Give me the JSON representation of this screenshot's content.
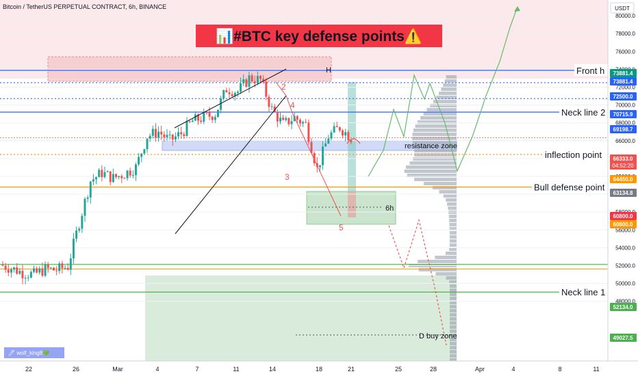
{
  "header": {
    "symbol_title": "Bitcoin / TetherUS PERPETUAL CONTRACT, 6h, BINANCE",
    "currency_button": "USDT"
  },
  "banner": {
    "title": "📊#BTC key defense points⚠️"
  },
  "author_tag": "🖊 wolf_king8💚",
  "colors": {
    "background": "#ffffff",
    "up": "#26a69a",
    "down": "#ef5350",
    "blue": "#2962ff",
    "orange": "#ff9800",
    "green": "#4caf50",
    "banner_bg": "#f23645",
    "red_zone": "#f8d7da",
    "green_zone": "#b9dbbd",
    "profile": "#9aa0ad"
  },
  "chart_data": {
    "type": "candlestick",
    "title": "Bitcoin / TetherUS PERPETUAL CONTRACT, 6h, BINANCE",
    "interval": "6h",
    "y_axis": {
      "ticks": [
        48000,
        50000,
        52000,
        54000,
        56000,
        58000,
        60000,
        62000,
        64000,
        66000,
        68000,
        70000,
        72000,
        74000,
        76000,
        78000,
        80000
      ],
      "ylim": [
        47000,
        82000
      ],
      "unit": "USDT"
    },
    "x_axis": {
      "tick_labels": [
        "22",
        "26",
        "Mar",
        "4",
        "7",
        "11",
        "14",
        "18",
        "21",
        "25",
        "28",
        "Apr",
        "4",
        "8",
        "11"
      ]
    },
    "price_path": [
      [
        "2024-02-20",
        52100
      ],
      [
        "2024-02-21",
        51700
      ],
      [
        "2024-02-22",
        51200
      ],
      [
        "2024-02-23",
        51000
      ],
      [
        "2024-02-24",
        51600
      ],
      [
        "2024-02-25",
        51500
      ],
      [
        "2024-02-26",
        51900
      ],
      [
        "2024-02-27",
        56800
      ],
      [
        "2024-02-28",
        61500
      ],
      [
        "2024-02-29",
        62400
      ],
      [
        "2024-03-01",
        61800
      ],
      [
        "2024-03-02",
        62300
      ],
      [
        "2024-03-03",
        63000
      ],
      [
        "2024-03-04",
        66500
      ],
      [
        "2024-03-05",
        67000
      ],
      [
        "2024-03-06",
        66000
      ],
      [
        "2024-03-07",
        66800
      ],
      [
        "2024-03-08",
        68200
      ],
      [
        "2024-03-09",
        68600
      ],
      [
        "2024-03-10",
        69000
      ],
      [
        "2024-03-11",
        71800
      ],
      [
        "2024-03-12",
        71500
      ],
      [
        "2024-03-13",
        73000
      ],
      [
        "2024-03-14",
        72800
      ],
      [
        "2024-03-15",
        69500
      ],
      [
        "2024-03-16",
        67800
      ],
      [
        "2024-03-17",
        68600
      ],
      [
        "2024-03-18",
        67800
      ],
      [
        "2024-03-19",
        62800
      ],
      [
        "2024-03-20",
        66500
      ],
      [
        "2024-03-21",
        67500
      ],
      [
        "2024-03-22",
        66333
      ]
    ],
    "key_levels": [
      {
        "name": "Front h",
        "price": 73881.4,
        "color": "#2962ff",
        "style": "solid"
      },
      {
        "price": 72500.0,
        "color": "#2962ff",
        "style": "dotted"
      },
      {
        "price": 70715.9,
        "color": "#2962ff",
        "style": "dotted"
      },
      {
        "name": "Neck line 2",
        "price": 69198.7,
        "color": "#2962ff",
        "style": "solid"
      },
      {
        "name": "inflection point",
        "price": 64450.0,
        "color": "#ff9800",
        "style": "dotted"
      },
      {
        "name": "Bull defense point",
        "price": 60800.0,
        "color": "#ff9800",
        "style": "solid"
      },
      {
        "price": 52134.0,
        "color": "#4caf50",
        "style": "solid"
      },
      {
        "name": "Neck line 1",
        "price": 49027.5,
        "color": "#4caf50",
        "style": "solid"
      }
    ],
    "price_tags": [
      {
        "label": "73881.4",
        "color": "#089981"
      },
      {
        "label": "73881.4",
        "color": "#2962ff"
      },
      {
        "label": "72500.0",
        "color": "#2962ff"
      },
      {
        "label": "70715.9",
        "color": "#2962ff"
      },
      {
        "label": "69198.7",
        "color": "#2962ff"
      },
      {
        "label": "66333.0",
        "sub": "04:52:20",
        "color": "#ef5350"
      },
      {
        "label": "64450.0",
        "color": "#ff9800"
      },
      {
        "label": "63134.8",
        "color": "#787b86"
      },
      {
        "label": "60800.0",
        "color": "#f23645"
      },
      {
        "label": "60800.0",
        "color": "#ff9800"
      },
      {
        "label": "52134.0",
        "color": "#4caf50"
      },
      {
        "label": "49027.5",
        "color": "#4caf50"
      }
    ],
    "annotations": [
      {
        "text": "H"
      },
      {
        "text": "2"
      },
      {
        "text": "3"
      },
      {
        "text": "4"
      },
      {
        "text": "5"
      },
      {
        "text": "resistance zone"
      },
      {
        "text": "6h"
      },
      {
        "text": "D buy zone"
      }
    ]
  }
}
